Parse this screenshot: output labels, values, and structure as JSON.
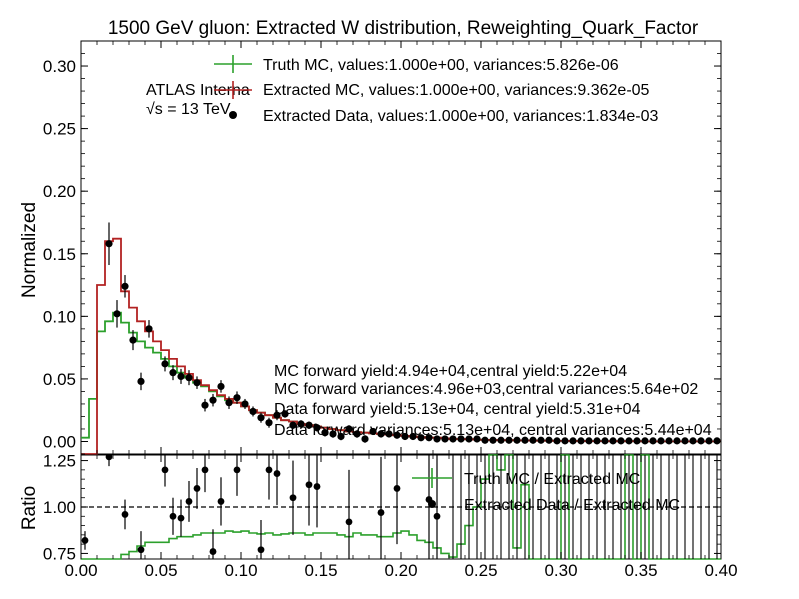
{
  "chart_data": {
    "type": "line",
    "title": "1500 GeV gluon: Extracted W distribution, Reweighting_Quark_Factor",
    "experiment_label": "ATLAS Interna",
    "energy_label": "√s = 13 TeV",
    "upper": {
      "ylabel": "Normalized",
      "ylim": [
        -0.01,
        0.32
      ],
      "yticks": [
        "0.00",
        "0.05",
        "0.10",
        "0.15",
        "0.20",
        "0.25",
        "0.30"
      ],
      "yticks_values": [
        0,
        0.05,
        0.1,
        0.15,
        0.2,
        0.25,
        0.3
      ],
      "legend": [
        "Truth MC, values:1.000e+00, variances:5.826e-06",
        "Extracted MC, values:1.000e+00, variances:9.362e-05",
        "Extracted Data, values:1.000e+00, variances:1.834e-03"
      ],
      "annotations": [
        "MC forward yield:4.94e+04,central yield:5.22e+04",
        "MC forward variances:4.96e+03,central variances:5.64e+02",
        "Data forward yield:5.13e+04, central yield:5.31e+04",
        "Data forward variances:5.13e+04, central variances:5.44e+04"
      ],
      "bin_edges": [
        0.0,
        0.005,
        0.01,
        0.015,
        0.02,
        0.025,
        0.03,
        0.035,
        0.04,
        0.045,
        0.05,
        0.055,
        0.06,
        0.065,
        0.07,
        0.075,
        0.08,
        0.085,
        0.09,
        0.095,
        0.1,
        0.105,
        0.11,
        0.115,
        0.12,
        0.125,
        0.13,
        0.135,
        0.14,
        0.145,
        0.15,
        0.155,
        0.16,
        0.165,
        0.17,
        0.175,
        0.18,
        0.185,
        0.19,
        0.195,
        0.2,
        0.205,
        0.21,
        0.215,
        0.22,
        0.225,
        0.23,
        0.235,
        0.24,
        0.245,
        0.25,
        0.255,
        0.26,
        0.265,
        0.27,
        0.275,
        0.28,
        0.285,
        0.29,
        0.295,
        0.3,
        0.305,
        0.31,
        0.315,
        0.32,
        0.325,
        0.33,
        0.335,
        0.34,
        0.345,
        0.35,
        0.355,
        0.36,
        0.365,
        0.37,
        0.375,
        0.38,
        0.385,
        0.39,
        0.395,
        0.4
      ],
      "series": [
        {
          "name": "Truth MC",
          "color": "#2ca02c",
          "values": [
            0.003,
            0.034,
            0.088,
            0.096,
            0.103,
            0.095,
            0.087,
            0.08,
            0.075,
            0.071,
            0.066,
            0.06,
            0.055,
            0.051,
            0.047,
            0.044,
            0.04,
            0.036,
            0.033,
            0.031,
            0.028,
            0.025,
            0.023,
            0.021,
            0.019,
            0.017,
            0.016,
            0.014,
            0.013,
            0.012,
            0.011,
            0.01,
            0.009,
            0.008,
            0.0075,
            0.007,
            0.0065,
            0.006,
            0.0055,
            0.005,
            0.0045,
            0.004,
            0.0035,
            0.003,
            0.003,
            0.0025,
            0.002,
            0.002,
            0.0018,
            0.0015,
            0.0013,
            0.0012,
            0.001,
            0.001,
            0.0009,
            0.0008,
            0.0007,
            0.0006,
            0.0006,
            0.0005,
            0.0005,
            0.0004,
            0.0004,
            0.0003,
            0.0003,
            0.0003,
            0.0002,
            0.0002,
            0.0002,
            0.0002,
            0.0001,
            0.0001,
            0.0001,
            0.0001,
            0.0001,
            0.0001,
            0.0001,
            0.0001,
            0.0001,
            0.0001
          ]
        },
        {
          "name": "Extracted MC",
          "color": "#b22222",
          "values": [
            -0.01,
            -0.01,
            0.125,
            0.16,
            0.162,
            0.12,
            0.107,
            0.096,
            0.088,
            0.08,
            0.073,
            0.066,
            0.06,
            0.054,
            0.049,
            0.045,
            0.041,
            0.037,
            0.034,
            0.031,
            0.028,
            0.025,
            0.023,
            0.021,
            0.019,
            0.017,
            0.016,
            0.014,
            0.013,
            0.012,
            0.011,
            0.01,
            0.009,
            0.008,
            0.0075,
            0.007,
            0.0065,
            0.006,
            0.0055,
            0.005,
            0.0045,
            0.004,
            0.0035,
            0.003,
            0.003,
            0.0025,
            0.002,
            0.002,
            0.0018,
            0.0015,
            0.0013,
            0.0012,
            0.001,
            0.001,
            0.0009,
            0.0008,
            0.0007,
            0.0006,
            0.0006,
            0.0005,
            0.0005,
            0.0004,
            0.0004,
            0.0003,
            0.0003,
            0.0003,
            0.0002,
            0.0002,
            0.0002,
            0.0002,
            0.0001,
            0.0001,
            0.0001,
            0.0001,
            0.0001,
            0.0001,
            0.0001,
            0.0001,
            0.0001,
            0.0001
          ]
        }
      ],
      "data_points": {
        "name": "Extracted Data",
        "color": "#000000",
        "x": [
          0.0175,
          0.0225,
          0.0275,
          0.0325,
          0.0375,
          0.0425,
          0.0525,
          0.0575,
          0.0625,
          0.0675,
          0.0725,
          0.0775,
          0.0825,
          0.0875,
          0.0925,
          0.0975,
          0.1025,
          0.1075,
          0.1125,
          0.1175,
          0.1225,
          0.1275,
          0.1325,
          0.1375,
          0.1425,
          0.1475,
          0.1525,
          0.1575,
          0.1625,
          0.1675,
          0.1725,
          0.1775,
          0.1825,
          0.1875,
          0.1925,
          0.1975,
          0.2025,
          0.2075,
          0.2125,
          0.2175,
          0.2225,
          0.2275,
          0.2325,
          0.2375,
          0.2425,
          0.2475,
          0.2525,
          0.2575,
          0.2625,
          0.2675,
          0.2725,
          0.2775,
          0.2825,
          0.2875,
          0.2925,
          0.2975,
          0.3025,
          0.3075,
          0.3125,
          0.3175,
          0.3225,
          0.3275,
          0.3325,
          0.3375,
          0.3425,
          0.3475,
          0.3525,
          0.3575,
          0.3625,
          0.3675,
          0.3725,
          0.3775,
          0.3825,
          0.3875,
          0.3925,
          0.3975
        ],
        "y": [
          0.158,
          0.102,
          0.124,
          0.081,
          0.048,
          0.09,
          0.062,
          0.055,
          0.052,
          0.051,
          0.047,
          0.029,
          0.033,
          0.044,
          0.031,
          0.035,
          0.03,
          0.024,
          0.019,
          0.015,
          0.021,
          0.022,
          0.013,
          0.014,
          0.013,
          0.011,
          0.007,
          0.006,
          0.004,
          0.01,
          0.006,
          0.002,
          0.008,
          0.006,
          0.006,
          0.005,
          0.004,
          0.004,
          0.003,
          0.003,
          0.002,
          0.002,
          0.002,
          0.002,
          0.002,
          0.002,
          0.001,
          0.001,
          0.001,
          0.001,
          0.001,
          0.001,
          0.001,
          0.001,
          0.001,
          0.0005,
          0.0005,
          0.0005,
          0.0005,
          0.0005,
          0.0005,
          0.0005,
          0.0005,
          0.0005,
          0.0005,
          0.0005,
          0.0005,
          0.0005,
          0.0005,
          0.0005,
          0.0005,
          0.0005,
          0.0005,
          0.0005,
          0.0005,
          0.0005
        ],
        "yerr": [
          0.017,
          0.011,
          0.009,
          0.008,
          0.007,
          0.007,
          0.006,
          0.006,
          0.006,
          0.006,
          0.005,
          0.005,
          0.005,
          0.005,
          0.005,
          0.005,
          0.004,
          0.004,
          0.004,
          0.004,
          0.004,
          0.003,
          0.003,
          0.003,
          0.003,
          0.003,
          0.003,
          0.003,
          0.003,
          0.003,
          0.003,
          0.003,
          0.002,
          0.002,
          0.002,
          0.002,
          0.002,
          0.002,
          0.002,
          0.002,
          0.002,
          0.002,
          0.002,
          0.002,
          0.002,
          0.002,
          0.001,
          0.001,
          0.001,
          0.001,
          0.001,
          0.001,
          0.001,
          0.001,
          0.001,
          0.001,
          0.001,
          0.001,
          0.001,
          0.001,
          0.001,
          0.001,
          0.001,
          0.001,
          0.001,
          0.001,
          0.001,
          0.001,
          0.001,
          0.001,
          0.001,
          0.001,
          0.001,
          0.001,
          0.001,
          0.001
        ]
      }
    },
    "lower": {
      "ylabel": "Ratio",
      "ylim": [
        0.72,
        1.28
      ],
      "yticks": [
        "0.75",
        "1.00",
        "1.25"
      ],
      "yticks_values": [
        0.75,
        1.0,
        1.25
      ],
      "reference_line": 1.0,
      "legend": [
        "Truth MC / Extracted MC",
        "Extracted Data / Extracted MC"
      ],
      "truth_ratio": [
        0.72,
        0.72,
        0.72,
        0.72,
        0.72,
        0.745,
        0.76,
        0.79,
        0.81,
        0.81,
        0.81,
        0.83,
        0.84,
        0.84,
        0.85,
        0.86,
        0.86,
        0.86,
        0.87,
        0.865,
        0.87,
        0.86,
        0.855,
        0.86,
        0.85,
        0.855,
        0.86,
        0.86,
        0.85,
        0.86,
        0.86,
        0.86,
        0.85,
        0.84,
        0.86,
        0.85,
        0.85,
        0.84,
        0.84,
        0.86,
        0.87,
        0.85,
        0.82,
        0.81,
        0.78,
        0.75,
        0.73,
        0.8,
        0.9,
        1.0,
        1.15,
        1.28,
        1.2,
        1.28,
        0.78,
        1.12,
        0.72,
        0.72,
        0.72,
        0.72,
        1.28,
        0.72,
        0.72,
        0.72,
        0.72,
        0.72,
        0.72,
        0.72,
        1.28,
        0.72,
        1.28,
        0.72,
        0.72,
        0.72,
        0.72,
        0.72,
        0.72,
        0.72,
        0.72,
        0.72
      ],
      "data_ratio_x": [
        0.0025,
        0.0175,
        0.0275,
        0.0375,
        0.0525,
        0.0575,
        0.0625,
        0.0675,
        0.0725,
        0.0775,
        0.0825,
        0.0875,
        0.0975,
        0.1125,
        0.1175,
        0.1225,
        0.1325,
        0.1425,
        0.1475,
        0.1675,
        0.1875,
        0.1975,
        0.2175,
        0.2225
      ],
      "data_ratio_y": [
        0.82,
        1.27,
        0.96,
        0.77,
        1.2,
        0.95,
        0.94,
        1.03,
        1.1,
        1.2,
        0.76,
        1.03,
        1.2,
        0.77,
        1.2,
        1.18,
        1.05,
        1.12,
        1.11,
        0.92,
        0.97,
        1.1,
        1.04,
        0.95
      ],
      "data_ratio_err": [
        0.05,
        0.05,
        0.08,
        0.1,
        0.09,
        0.1,
        0.1,
        0.11,
        0.11,
        0.12,
        0.12,
        0.13,
        0.14,
        0.16,
        0.16,
        0.17,
        0.2,
        0.22,
        0.22,
        0.28,
        0.3,
        0.3,
        0.4,
        0.4
      ]
    },
    "xlabel": "",
    "xlim": [
      0.0,
      0.4
    ],
    "xticks": [
      "0.00",
      "0.05",
      "0.10",
      "0.15",
      "0.20",
      "0.25",
      "0.30",
      "0.35",
      "0.40"
    ],
    "xticks_values": [
      0.0,
      0.05,
      0.1,
      0.15,
      0.2,
      0.25,
      0.3,
      0.35,
      0.4
    ],
    "grid": false,
    "legend_placement": "top-right"
  }
}
